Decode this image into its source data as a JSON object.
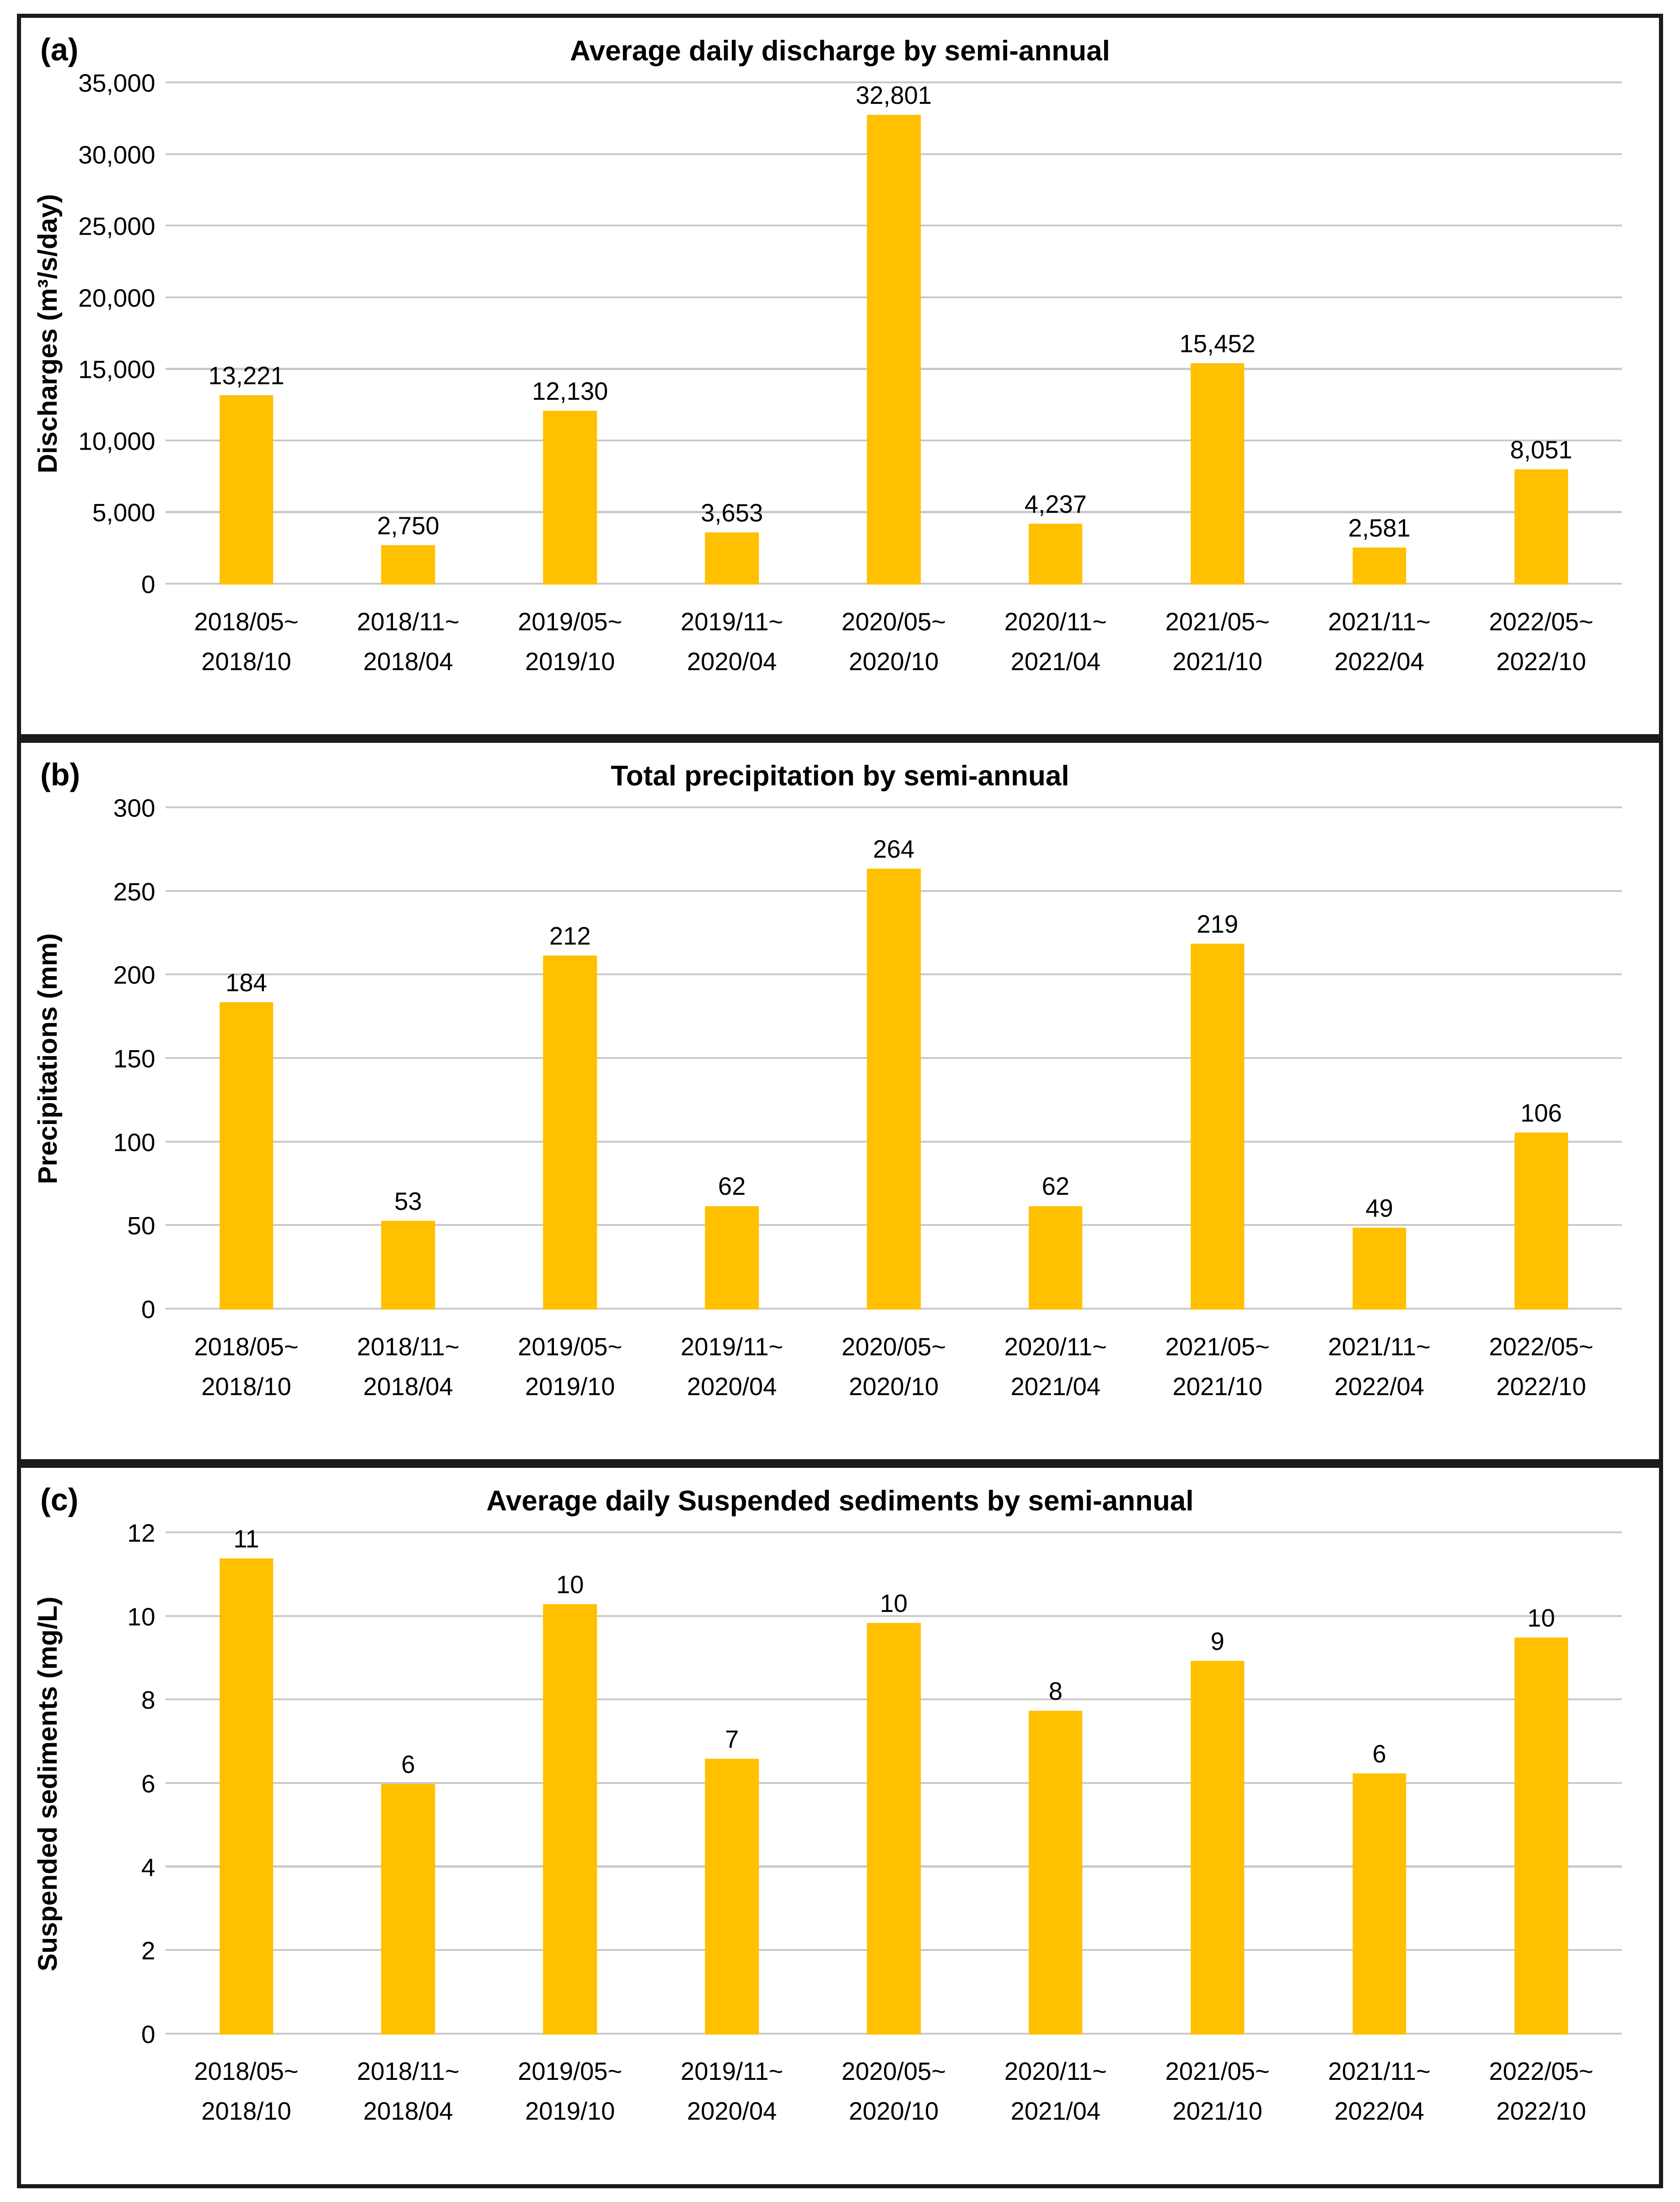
{
  "style": {
    "bar_color": "#FFC000",
    "gridline_color": "#c9c9c9",
    "border_color": "#1b1b1b",
    "background": "#ffffff",
    "text_color": "#000000"
  },
  "chart_data": [
    {
      "type": "bar",
      "panel_letter": "(a)",
      "title": "Average daily discharge by semi-annual",
      "xlabel": "",
      "ylabel": "Discharges (m³/s/day)",
      "ylim": [
        0,
        35000
      ],
      "grid": true,
      "legend": null,
      "yticks": [
        {
          "value": 0,
          "label": "0"
        },
        {
          "value": 5000,
          "label": "5,000"
        },
        {
          "value": 10000,
          "label": "10,000"
        },
        {
          "value": 15000,
          "label": "15,000"
        },
        {
          "value": 20000,
          "label": "20,000"
        },
        {
          "value": 25000,
          "label": "25,000"
        },
        {
          "value": 30000,
          "label": "30,000"
        },
        {
          "value": 35000,
          "label": "35,000"
        }
      ],
      "categories": [
        [
          "2018/05~",
          "2018/10"
        ],
        [
          "2018/11~",
          "2018/04"
        ],
        [
          "2019/05~",
          "2019/10"
        ],
        [
          "2019/11~",
          "2020/04"
        ],
        [
          "2020/05~",
          "2020/10"
        ],
        [
          "2020/11~",
          "2021/04"
        ],
        [
          "2021/05~",
          "2021/10"
        ],
        [
          "2021/11~",
          "2022/04"
        ],
        [
          "2022/05~",
          "2022/10"
        ]
      ],
      "values": [
        13221,
        2750,
        12130,
        3653,
        32801,
        4237,
        15452,
        2581,
        8051
      ],
      "bar_labels": [
        "13,221",
        "2,750",
        "12,130",
        "3,653",
        "32,801",
        "4,237",
        "15,452",
        "2,581",
        "8,051"
      ]
    },
    {
      "type": "bar",
      "panel_letter": "(b)",
      "title": "Total precipitation by semi-annual",
      "xlabel": "",
      "ylabel": "Precipitations (mm)",
      "ylim": [
        0,
        300
      ],
      "grid": true,
      "legend": null,
      "yticks": [
        {
          "value": 0,
          "label": "0"
        },
        {
          "value": 50,
          "label": "50"
        },
        {
          "value": 100,
          "label": "100"
        },
        {
          "value": 150,
          "label": "150"
        },
        {
          "value": 200,
          "label": "200"
        },
        {
          "value": 250,
          "label": "250"
        },
        {
          "value": 300,
          "label": "300"
        }
      ],
      "categories": [
        [
          "2018/05~",
          "2018/10"
        ],
        [
          "2018/11~",
          "2018/04"
        ],
        [
          "2019/05~",
          "2019/10"
        ],
        [
          "2019/11~",
          "2020/04"
        ],
        [
          "2020/05~",
          "2020/10"
        ],
        [
          "2020/11~",
          "2021/04"
        ],
        [
          "2021/05~",
          "2021/10"
        ],
        [
          "2021/11~",
          "2022/04"
        ],
        [
          "2022/05~",
          "2022/10"
        ]
      ],
      "values": [
        184,
        53,
        212,
        62,
        264,
        62,
        219,
        49,
        106
      ],
      "bar_labels": [
        "184",
        "53",
        "212",
        "62",
        "264",
        "62",
        "219",
        "49",
        "106"
      ]
    },
    {
      "type": "bar",
      "panel_letter": "(c)",
      "title": "Average daily Suspended sediments by semi-annual",
      "xlabel": "",
      "ylabel": "Suspended sediments (mg/L)",
      "ylim": [
        0,
        12
      ],
      "grid": true,
      "legend": null,
      "yticks": [
        {
          "value": 0,
          "label": "0"
        },
        {
          "value": 2,
          "label": "2"
        },
        {
          "value": 4,
          "label": "4"
        },
        {
          "value": 6,
          "label": "6"
        },
        {
          "value": 8,
          "label": "8"
        },
        {
          "value": 10,
          "label": "10"
        },
        {
          "value": 12,
          "label": "12"
        }
      ],
      "categories": [
        [
          "2018/05~",
          "2018/10"
        ],
        [
          "2018/11~",
          "2018/04"
        ],
        [
          "2019/05~",
          "2019/10"
        ],
        [
          "2019/11~",
          "2020/04"
        ],
        [
          "2020/05~",
          "2020/10"
        ],
        [
          "2020/11~",
          "2021/04"
        ],
        [
          "2021/05~",
          "2021/10"
        ],
        [
          "2021/11~",
          "2022/04"
        ],
        [
          "2022/05~",
          "2022/10"
        ]
      ],
      "values": [
        11.4,
        6.0,
        10.3,
        6.6,
        9.85,
        7.75,
        8.95,
        6.25,
        9.5
      ],
      "bar_labels": [
        "11",
        "6",
        "10",
        "7",
        "10",
        "8",
        "9",
        "6",
        "10"
      ]
    }
  ]
}
